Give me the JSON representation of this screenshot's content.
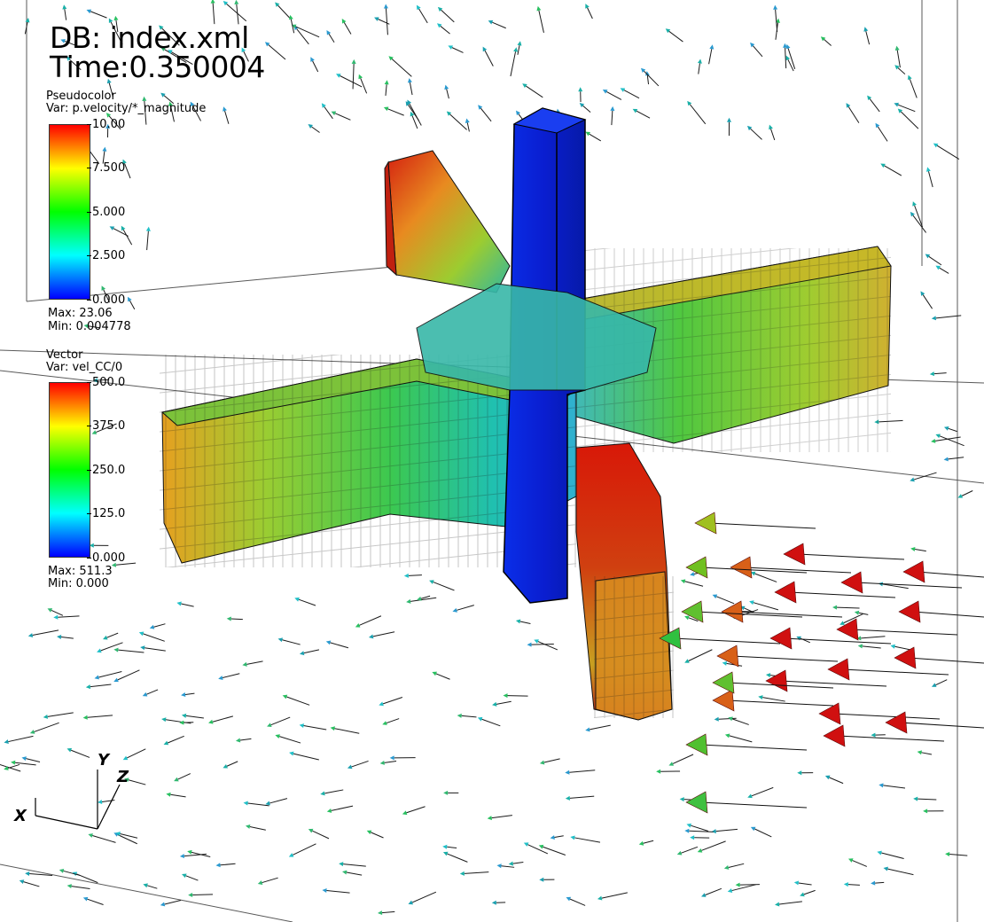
{
  "header": {
    "db": "DB: index.xml",
    "time": "Time:0.350004"
  },
  "pseudocolor_legend": {
    "title": "Pseudocolor",
    "var": "Var: p.velocity/*_magnitude",
    "ticks": [
      "10.00",
      "7.500",
      "5.000",
      "2.500",
      "0.000"
    ],
    "max": "Max:  23.06",
    "min": "Min:  0.004778"
  },
  "vector_legend": {
    "title": "Vector",
    "var": "Var: vel_CC/0",
    "ticks": [
      "500.0",
      "375.0",
      "250.0",
      "125.0",
      "0.000"
    ],
    "max": "Max:  511.3",
    "min": "Min:  0.000"
  },
  "axes": {
    "x": "X",
    "y": "Y",
    "z": "Z"
  },
  "colors": {
    "colormap": [
      "#0000ff",
      "#00ffff",
      "#00ff00",
      "#ffff00",
      "#ff0000"
    ],
    "background": "#ffffff",
    "column": "#0a22dd"
  }
}
